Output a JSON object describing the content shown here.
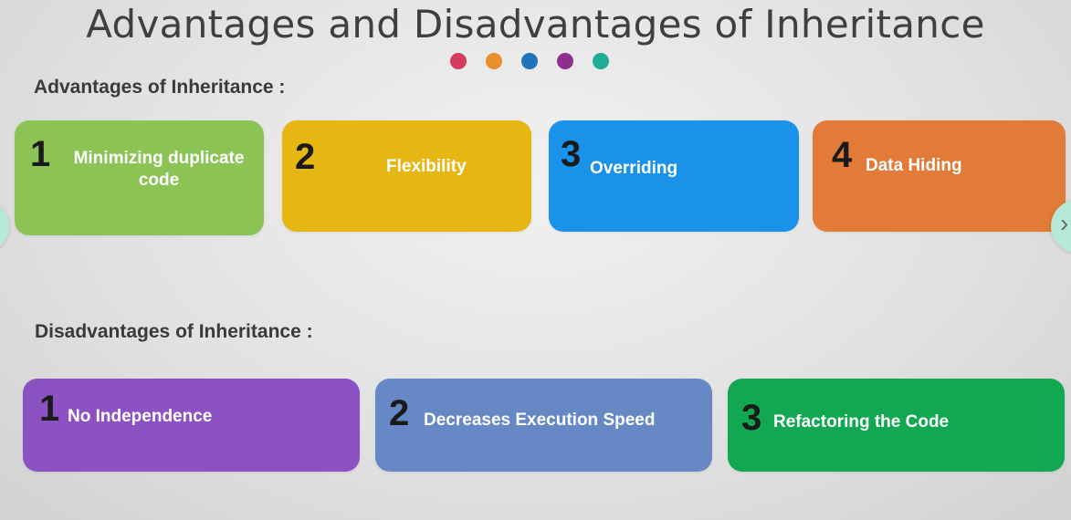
{
  "title": "Advantages and Disadvantages of Inheritance",
  "dots": [
    "#d63a5c",
    "#e8902c",
    "#1f73b8",
    "#8e2f8e",
    "#1fae94"
  ],
  "advantages": {
    "heading": "Advantages of Inheritance :",
    "items": [
      {
        "num": "1",
        "label": "Minimizing duplicate code",
        "color": "#8bc455"
      },
      {
        "num": "2",
        "label": "Flexibility",
        "color": "#e6b612"
      },
      {
        "num": "3",
        "label": "Overriding",
        "color": "#1a92ea"
      },
      {
        "num": "4",
        "label": "Data Hiding",
        "color": "#e27b38"
      }
    ]
  },
  "disadvantages": {
    "heading": "Disadvantages of Inheritance :",
    "items": [
      {
        "num": "1",
        "label": "No Independence",
        "color": "#8c52c4"
      },
      {
        "num": "2",
        "label": "Decreases Execution Speed",
        "color": "#6688c4"
      },
      {
        "num": "3",
        "label": "Refactoring the Code",
        "color": "#12a852"
      }
    ]
  },
  "nav": {
    "prev_icon": "chevron-left-icon",
    "next_icon": "chevron-right-icon",
    "next_glyph": "›"
  }
}
